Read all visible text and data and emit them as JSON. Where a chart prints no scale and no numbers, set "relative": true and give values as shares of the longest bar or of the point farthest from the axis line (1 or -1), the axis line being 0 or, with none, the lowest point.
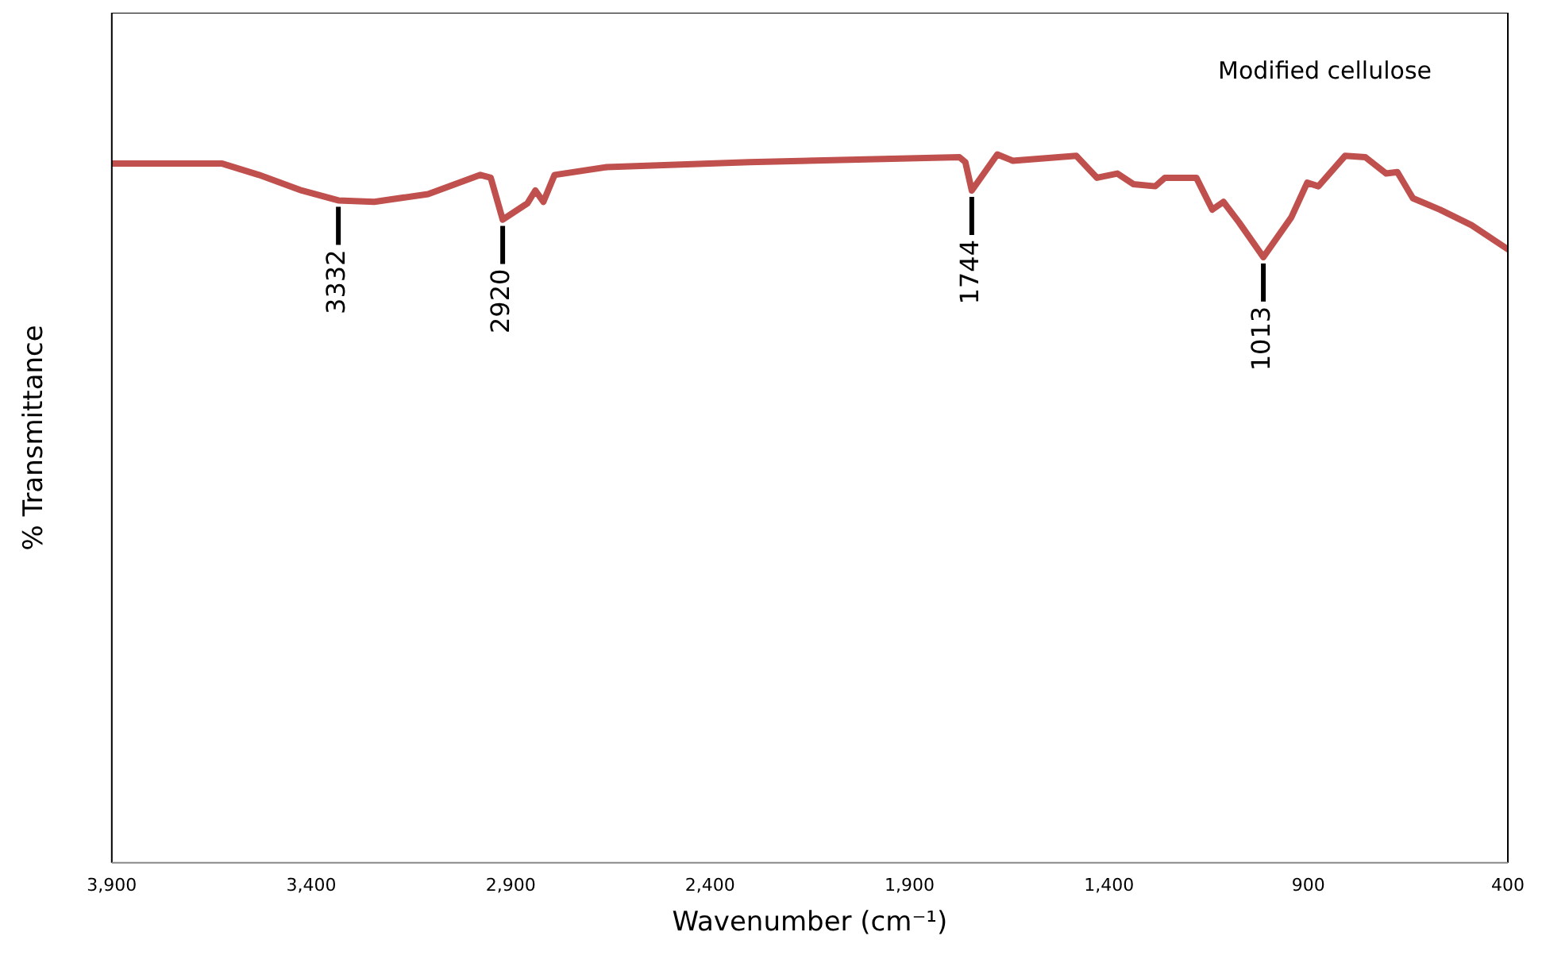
{
  "chart_data": {
    "type": "line",
    "relative": true,
    "xlabel": "Wavenumber (cm⁻¹)",
    "ylabel": "% Transmittance",
    "x": [
      3900,
      3623,
      3531,
      3424,
      3332,
      3242,
      3107,
      2976,
      2950,
      2920,
      2858,
      2838,
      2818,
      2790,
      2659,
      2302,
      1775,
      1760,
      1744,
      1680,
      1641,
      1482,
      1430,
      1379,
      1339,
      1284,
      1260,
      1181,
      1141,
      1113,
      1074,
      1013,
      943,
      903,
      875,
      808,
      757,
      705,
      677,
      638,
      570,
      491,
      400
    ],
    "series": [
      {
        "color": "#c0504d",
        "values": [
          0.987,
          0.987,
          0.971,
          0.949,
          0.935,
          0.933,
          0.944,
          0.971,
          0.967,
          0.908,
          0.931,
          0.949,
          0.933,
          0.971,
          0.982,
          0.989,
          0.996,
          0.989,
          0.949,
          1.0,
          0.991,
          0.998,
          0.967,
          0.973,
          0.958,
          0.955,
          0.967,
          0.967,
          0.922,
          0.933,
          0.904,
          0.855,
          0.911,
          0.96,
          0.955,
          0.998,
          0.996,
          0.973,
          0.975,
          0.938,
          0.922,
          0.9,
          0.866
        ]
      }
    ],
    "xlim": [
      3900,
      400
    ],
    "xticks": [
      {
        "value": 3900,
        "label": "3,900"
      },
      {
        "value": 3400,
        "label": "3,400"
      },
      {
        "value": 2900,
        "label": "2,900"
      },
      {
        "value": 2400,
        "label": "2,400"
      },
      {
        "value": 1900,
        "label": "1,900"
      },
      {
        "value": 1400,
        "label": "1,400"
      },
      {
        "value": 900,
        "label": "900"
      },
      {
        "value": 400,
        "label": "400"
      }
    ],
    "annotations": [
      {
        "text": "3332",
        "x": 3332,
        "y": 0.935
      },
      {
        "text": "2920",
        "x": 2920,
        "y": 0.908
      },
      {
        "text": "1744",
        "x": 1744,
        "y": 0.949
      },
      {
        "text": "1013",
        "x": 1013,
        "y": 0.855
      },
      "Modified cellulose"
    ],
    "grid": false,
    "legend": false,
    "marker": "none",
    "line_style": "solid"
  }
}
